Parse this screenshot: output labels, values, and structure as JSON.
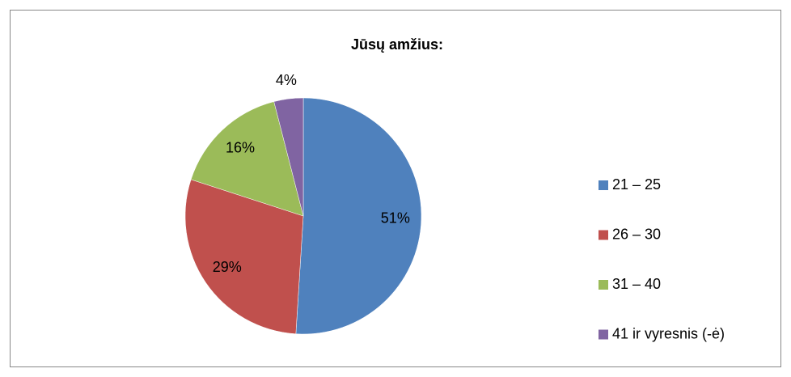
{
  "chart_data": {
    "type": "pie",
    "title": "Jūsų amžius:",
    "categories": [
      "21 – 25",
      "26 – 30",
      "31 – 40",
      "41 ir vyresnis (-ė)"
    ],
    "values": [
      51,
      29,
      16,
      4
    ],
    "value_labels": [
      "51%",
      "29%",
      "16%",
      "4%"
    ],
    "colors": [
      "#4f81bd",
      "#c0504d",
      "#9bbb59",
      "#8064a2"
    ],
    "legend": "right"
  }
}
